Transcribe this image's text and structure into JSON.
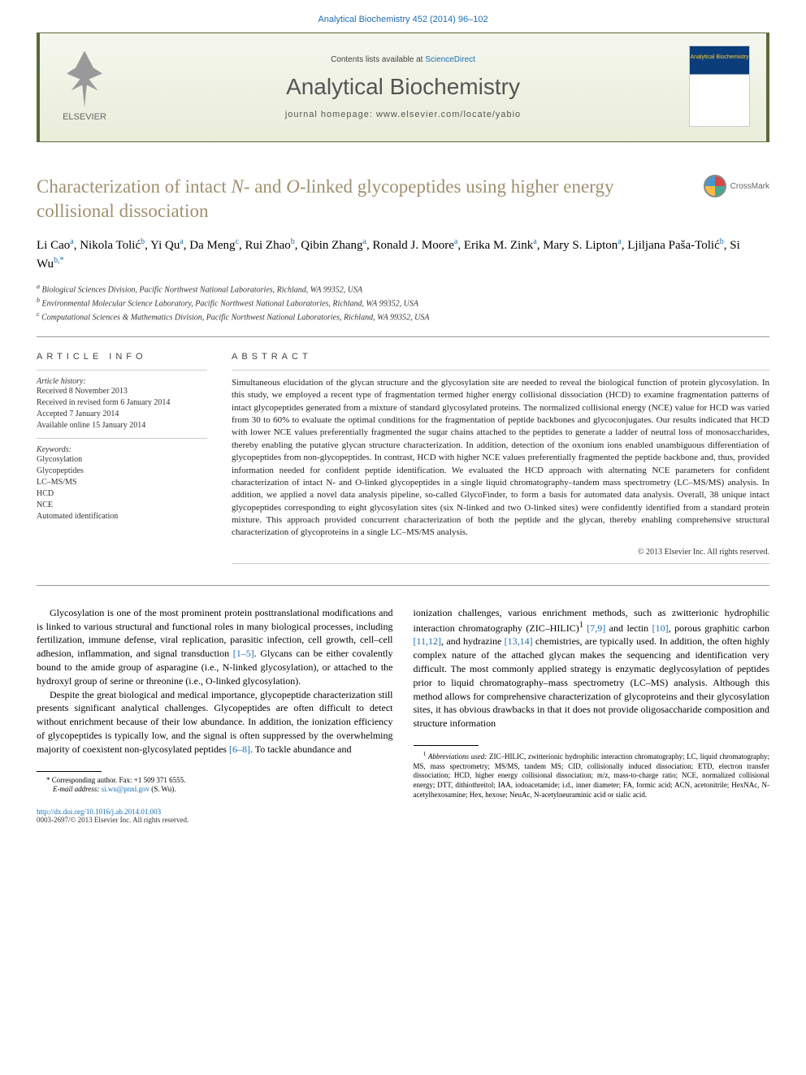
{
  "header": {
    "citation_link": "Analytical Biochemistry 452 (2014) 96–102",
    "contents_text": "Contents lists available at ",
    "contents_link": "ScienceDirect",
    "journal_name": "Analytical Biochemistry",
    "homepage_text": "journal homepage: www.elsevier.com/locate/yabio",
    "publisher": "ELSEVIER",
    "cover_title": "Analytical Biochemistry"
  },
  "crossmark": {
    "label": "CrossMark"
  },
  "title": {
    "part1": "Characterization of intact ",
    "part2_italic": "N",
    "part3": "- and ",
    "part4_italic": "O",
    "part5": "-linked glycopeptides using higher energy collisional dissociation"
  },
  "authors": [
    {
      "name": "Li Cao",
      "sup": "a"
    },
    {
      "name": "Nikola Tolić",
      "sup": "b"
    },
    {
      "name": "Yi Qu",
      "sup": "a"
    },
    {
      "name": "Da Meng",
      "sup": "c"
    },
    {
      "name": "Rui Zhao",
      "sup": "b"
    },
    {
      "name": "Qibin Zhang",
      "sup": "a"
    },
    {
      "name": "Ronald J. Moore",
      "sup": "a"
    },
    {
      "name": "Erika M. Zink",
      "sup": "a"
    },
    {
      "name": "Mary S. Lipton",
      "sup": "a"
    },
    {
      "name": "Ljiljana Paša-Tolić",
      "sup": "b"
    },
    {
      "name": "Si Wu",
      "sup": "b,*"
    }
  ],
  "affiliations": [
    {
      "sup": "a",
      "text": "Biological Sciences Division, Pacific Northwest National Laboratories, Richland, WA 99352, USA"
    },
    {
      "sup": "b",
      "text": "Environmental Molecular Science Laboratory, Pacific Northwest National Laboratories, Richland, WA 99352, USA"
    },
    {
      "sup": "c",
      "text": "Computational Sciences & Mathematics Division, Pacific Northwest National Laboratories, Richland, WA 99352, USA"
    }
  ],
  "article_info": {
    "heading": "ARTICLE INFO",
    "history_label": "Article history:",
    "history": [
      "Received 8 November 2013",
      "Received in revised form 6 January 2014",
      "Accepted 7 January 2014",
      "Available online 15 January 2014"
    ],
    "keywords_label": "Keywords:",
    "keywords": [
      "Glycosylation",
      "Glycopeptides",
      "LC–MS/MS",
      "HCD",
      "NCE",
      "Automated identification"
    ]
  },
  "abstract": {
    "heading": "ABSTRACT",
    "text": "Simultaneous elucidation of the glycan structure and the glycosylation site are needed to reveal the biological function of protein glycosylation. In this study, we employed a recent type of fragmentation termed higher energy collisional dissociation (HCD) to examine fragmentation patterns of intact glycopeptides generated from a mixture of standard glycosylated proteins. The normalized collisional energy (NCE) value for HCD was varied from 30 to 60% to evaluate the optimal conditions for the fragmentation of peptide backbones and glycoconjugates. Our results indicated that HCD with lower NCE values preferentially fragmented the sugar chains attached to the peptides to generate a ladder of neutral loss of monosaccharides, thereby enabling the putative glycan structure characterization. In addition, detection of the oxonium ions enabled unambiguous differentiation of glycopeptides from non-glycopeptides. In contrast, HCD with higher NCE values preferentially fragmented the peptide backbone and, thus, provided information needed for confident peptide identification. We evaluated the HCD approach with alternating NCE parameters for confident characterization of intact N- and O-linked glycopeptides in a single liquid chromatography–tandem mass spectrometry (LC–MS/MS) analysis. In addition, we applied a novel data analysis pipeline, so-called GlycoFinder, to form a basis for automated data analysis. Overall, 38 unique intact glycopeptides corresponding to eight glycosylation sites (six N-linked and two O-linked sites) were confidently identified from a standard protein mixture. This approach provided concurrent characterization of both the peptide and the glycan, thereby enabling comprehensive structural characterization of glycoproteins in a single LC–MS/MS analysis.",
    "copyright": "© 2013 Elsevier Inc. All rights reserved."
  },
  "body": {
    "col1_p1": "Glycosylation is one of the most prominent protein posttranslational modifications and is linked to various structural and functional roles in many biological processes, including fertilization, immune defense, viral replication, parasitic infection, cell growth, cell–cell adhesion, inflammation, and signal transduction ",
    "col1_p1_ref": "[1–5]",
    "col1_p1_end": ". Glycans can be either covalently bound to the amide group of asparagine (i.e., N-linked glycosylation), or attached to the hydroxyl group of serine or threonine (i.e., O-linked glycosylation).",
    "col1_p2": "Despite the great biological and medical importance, glycopeptide characterization still presents significant analytical challenges. Glycopeptides are often difficult to detect without enrichment because of their low abundance. In addition, the ionization efficiency of glycopeptides is typically low, and the signal is often suppressed by the overwhelming majority of coexistent non-glycosylated peptides ",
    "col1_p2_ref": "[6–8]",
    "col1_p2_end": ". To tackle abundance and",
    "col2_p1_a": "ionization challenges, various enrichment methods, such as zwitterionic hydrophilic interaction chromatography (ZIC–HILIC)",
    "col2_p1_sup": "1",
    "col2_p1_b": " ",
    "col2_p1_ref1": "[7,9]",
    "col2_p1_c": " and lectin ",
    "col2_p1_ref2": "[10]",
    "col2_p1_d": ", porous graphitic carbon ",
    "col2_p1_ref3": "[11,12]",
    "col2_p1_e": ", and hydrazine ",
    "col2_p1_ref4": "[13,14]",
    "col2_p1_f": " chemistries, are typically used. In addition, the often highly complex nature of the attached glycan makes the sequencing and identification very difficult. The most commonly applied strategy is enzymatic deglycosylation of peptides prior to liquid chromatography–mass spectrometry (LC–MS) analysis. Although this method allows for comprehensive characterization of glycoproteins and their glycosylation sites, it has obvious drawbacks in that it does not provide oligosaccharide composition and structure information"
  },
  "footnotes": {
    "corresponding": "* Corresponding author. Fax: +1 509 371 6555.",
    "email_label": "E-mail address: ",
    "email": "si.wu@pnnl.gov",
    "email_suffix": " (S. Wu).",
    "abbrev_sup": "1",
    "abbrev_label": " Abbreviations used:",
    "abbrev_text": " ZIC–HILIC, zwitterionic hydrophilic interaction chromatography; LC, liquid chromatography; MS, mass spectrometry; MS/MS, tandem MS; CID, collisionally induced dissociation; ETD, electron transfer dissociation; HCD, higher energy collisional dissociation; m/z, mass-to-charge ratio; NCE, normalized collisional energy; DTT, dithiothreitol; IAA, iodoacetamide; i.d., inner diameter; FA, formic acid; ACN, acetonitrile; HexNAc, N-acetylhexosamine; Hex, hexose; NeuAc, N-acetylneuraminic acid or sialic acid."
  },
  "footer": {
    "doi": "http://dx.doi.org/10.1016/j.ab.2014.01.003",
    "issn_copyright": "0003-2697/© 2013 Elsevier Inc. All rights reserved."
  },
  "colors": {
    "link": "#1b6eb5",
    "title": "#a09070",
    "banner_border": "#5a6a3a"
  }
}
